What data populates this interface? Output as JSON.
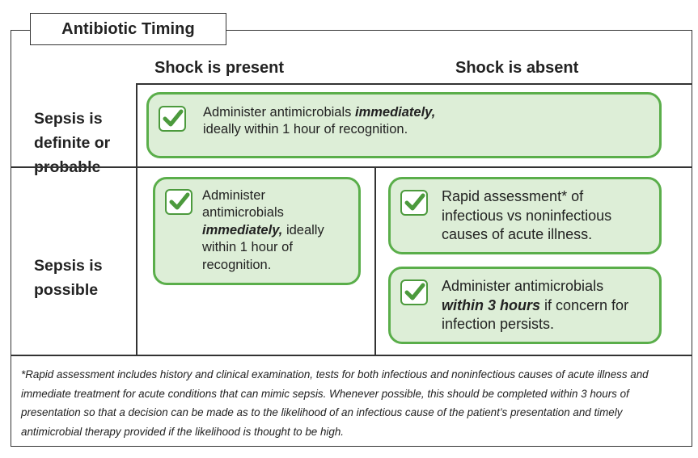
{
  "title": "Antibiotic Timing",
  "columns": {
    "shock_present": "Shock is present",
    "shock_absent": "Shock is absent"
  },
  "rows": {
    "definite": [
      "Sepsis is",
      "definite or",
      "probable"
    ],
    "possible": [
      "Sepsis is",
      "possible"
    ]
  },
  "cards": {
    "definite": {
      "pre": "Administer antimicrobials ",
      "emph": "immediately,",
      "post": "ideally within 1 hour of recognition."
    },
    "possible_shock": {
      "line1": "Administer",
      "line2": "antimicrobials",
      "emph": "immediately,",
      "line3_rest": " ideally",
      "line4": "within 1 hour of",
      "line5": "recognition."
    },
    "rapid_assessment": {
      "line1": "Rapid assessment* of",
      "line2": "infectious vs noninfectious",
      "line3": "causes of acute illness."
    },
    "within_3_hours": {
      "line1": "Administer antimicrobials",
      "emph": "within 3 hours",
      "line2_rest": " if concern for",
      "line3": "infection persists."
    }
  },
  "footnote": "*Rapid assessment includes history and clinical examination, tests for both infectious and noninfectious causes of acute illness and immediate treatment for acute conditions that can mimic sepsis. Whenever possible, this should be completed within 3 hours of presentation so that a decision can be made as to the likelihood of an infectious cause of the patient’s presentation and timely antimicrobial therapy provided if the likelihood is thought to be high.",
  "colors": {
    "card_fill": "#ddeed7",
    "card_border": "#5aae4a",
    "check_mark": "#4c9a3d"
  },
  "icons": [
    "check-icon"
  ]
}
